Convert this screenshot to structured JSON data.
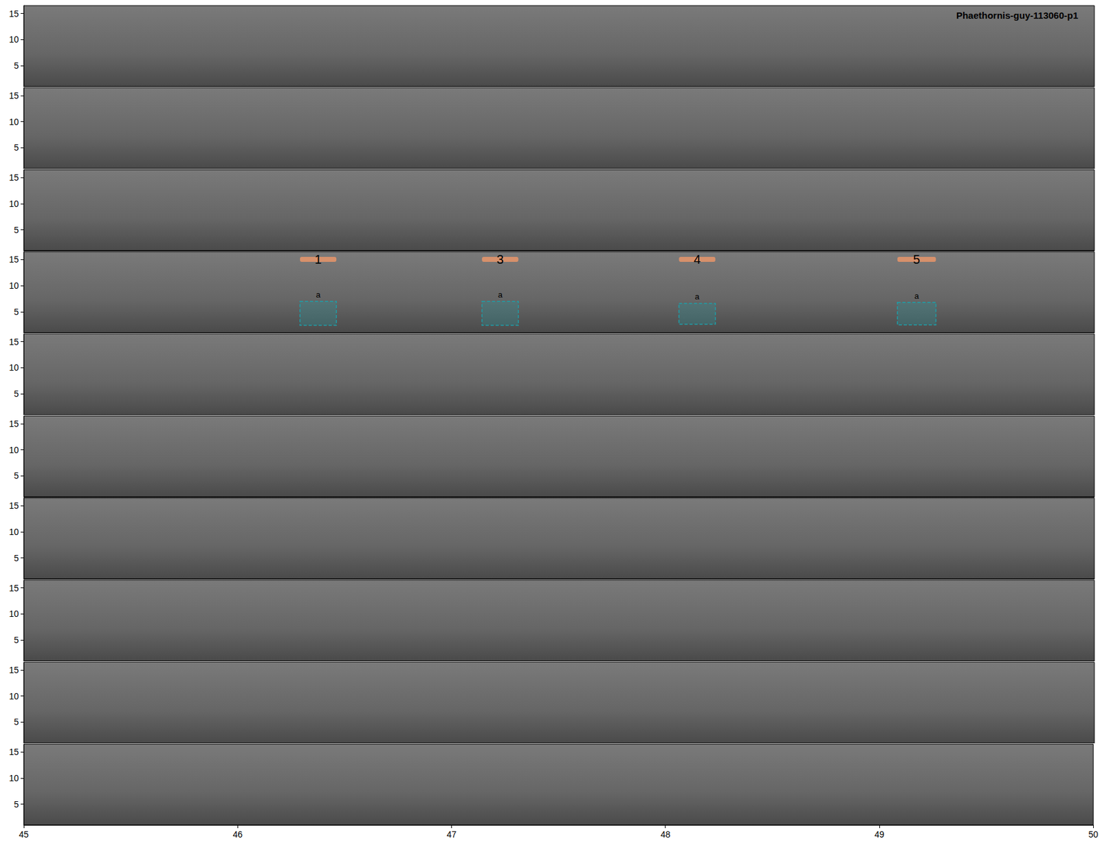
{
  "chart_data": {
    "type": "spectrogram",
    "title": "Phaethornis-guy-113060-p1",
    "panels": 10,
    "xlim": [
      45,
      50
    ],
    "xticks": [
      45,
      46,
      47,
      48,
      49,
      50
    ],
    "ylim": [
      1,
      16.5
    ],
    "yticks": [
      5,
      10,
      15
    ],
    "selections": [
      {
        "label": "1",
        "tag": "a",
        "panel": 4,
        "start": 46.29,
        "end": 46.46,
        "bottom_freq": 2.4,
        "top_freq": 7.0
      },
      {
        "label": "3",
        "tag": "a",
        "panel": 4,
        "start": 47.14,
        "end": 47.31,
        "bottom_freq": 2.4,
        "top_freq": 7.0
      },
      {
        "label": "4",
        "tag": "a",
        "panel": 4,
        "start": 48.06,
        "end": 48.23,
        "bottom_freq": 2.6,
        "top_freq": 6.6
      },
      {
        "label": "5",
        "tag": "a",
        "panel": 4,
        "start": 49.08,
        "end": 49.26,
        "bottom_freq": 2.5,
        "top_freq": 6.8
      }
    ],
    "colors": {
      "box": "#1e9ea8",
      "label_bar": "#e8956a"
    }
  }
}
